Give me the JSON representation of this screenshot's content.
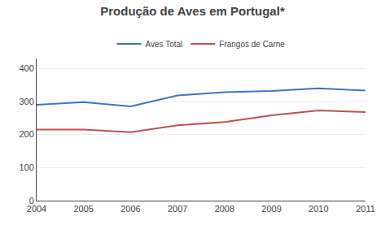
{
  "chart_data": {
    "type": "line",
    "title": "Produção de Aves em Portugal*",
    "x": [
      2004,
      2005,
      2006,
      2007,
      2008,
      2009,
      2010,
      2011
    ],
    "series": [
      {
        "name": "Aves Total",
        "color": "#4472C4",
        "values": [
          290,
          298,
          285,
          318,
          328,
          332,
          340,
          333
        ]
      },
      {
        "name": "Frangos de Carne",
        "color": "#C0504D",
        "values": [
          215,
          215,
          207,
          228,
          238,
          258,
          273,
          268
        ]
      }
    ],
    "xlim": [
      2004,
      2011
    ],
    "xticks": [
      2004,
      2005,
      2006,
      2007,
      2008,
      2009,
      2010,
      2011
    ],
    "ylim": [
      0,
      430
    ],
    "yticks": [
      0,
      100,
      200,
      300,
      400
    ],
    "grid": true,
    "legend": "top"
  }
}
